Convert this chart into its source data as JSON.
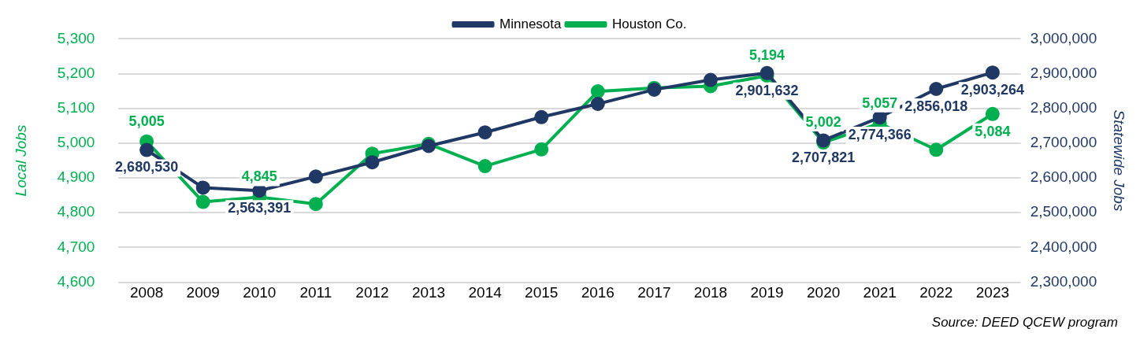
{
  "chart_data": {
    "type": "line",
    "categories": [
      "2008",
      "2009",
      "2010",
      "2011",
      "2012",
      "2013",
      "2014",
      "2015",
      "2016",
      "2017",
      "2018",
      "2019",
      "2020",
      "2021",
      "2022",
      "2023"
    ],
    "series": [
      {
        "name": "Houston Co.",
        "color": "#00b050",
        "values": [
          5005,
          4831,
          4845,
          4825,
          4970,
          4998,
          4934,
          4982,
          5149,
          5159,
          5164,
          5194,
          5002,
          5057,
          4981,
          5084
        ],
        "value_labels": [
          "5,005",
          null,
          "4,845",
          null,
          null,
          null,
          null,
          null,
          null,
          null,
          null,
          "5,194",
          "5,002",
          "5,057",
          null,
          "5,084"
        ]
      },
      {
        "name": "Minnesota",
        "color": "#203864",
        "axis": "y2",
        "values": [
          2680530,
          2572000,
          2563391,
          2604000,
          2645000,
          2692000,
          2731000,
          2775000,
          2813000,
          2854000,
          2882000,
          2901632,
          2707821,
          2774366,
          2856018,
          2903264
        ],
        "value_labels": [
          "2,680,530",
          null,
          "2,563,391",
          null,
          null,
          null,
          null,
          null,
          null,
          null,
          null,
          "2,901,632",
          "2,707,821",
          "2,774,366",
          "2,856,018",
          "2,903,264"
        ]
      }
    ],
    "ylabel": "Local Jobs",
    "y2label": "Statewide Jobs",
    "ylim": [
      4600,
      5300
    ],
    "yticks": [
      {
        "value": 4600,
        "label": "4,600"
      },
      {
        "value": 4700,
        "label": "4,700"
      },
      {
        "value": 4800,
        "label": "4,800"
      },
      {
        "value": 4900,
        "label": "4,900"
      },
      {
        "value": 5000,
        "label": "5,000"
      },
      {
        "value": 5100,
        "label": "5,100"
      },
      {
        "value": 5200,
        "label": "5,200"
      },
      {
        "value": 5300,
        "label": "5,300"
      }
    ],
    "y2lim": [
      2300000,
      3000000
    ],
    "y2ticks": [
      {
        "value": 2300000,
        "label": "2,300,000"
      },
      {
        "value": 2400000,
        "label": "2,400,000"
      },
      {
        "value": 2500000,
        "label": "2,500,000"
      },
      {
        "value": 2600000,
        "label": "2,600,000"
      },
      {
        "value": 2700000,
        "label": "2,700,000"
      },
      {
        "value": 2800000,
        "label": "2,800,000"
      },
      {
        "value": 2900000,
        "label": "2,900,000"
      },
      {
        "value": 3000000,
        "label": "3,000,000"
      }
    ],
    "grid": "y",
    "legend": "top",
    "marker": "circle",
    "line_style": "solid",
    "annotations": [
      "Source: DEED QCEW program"
    ]
  }
}
